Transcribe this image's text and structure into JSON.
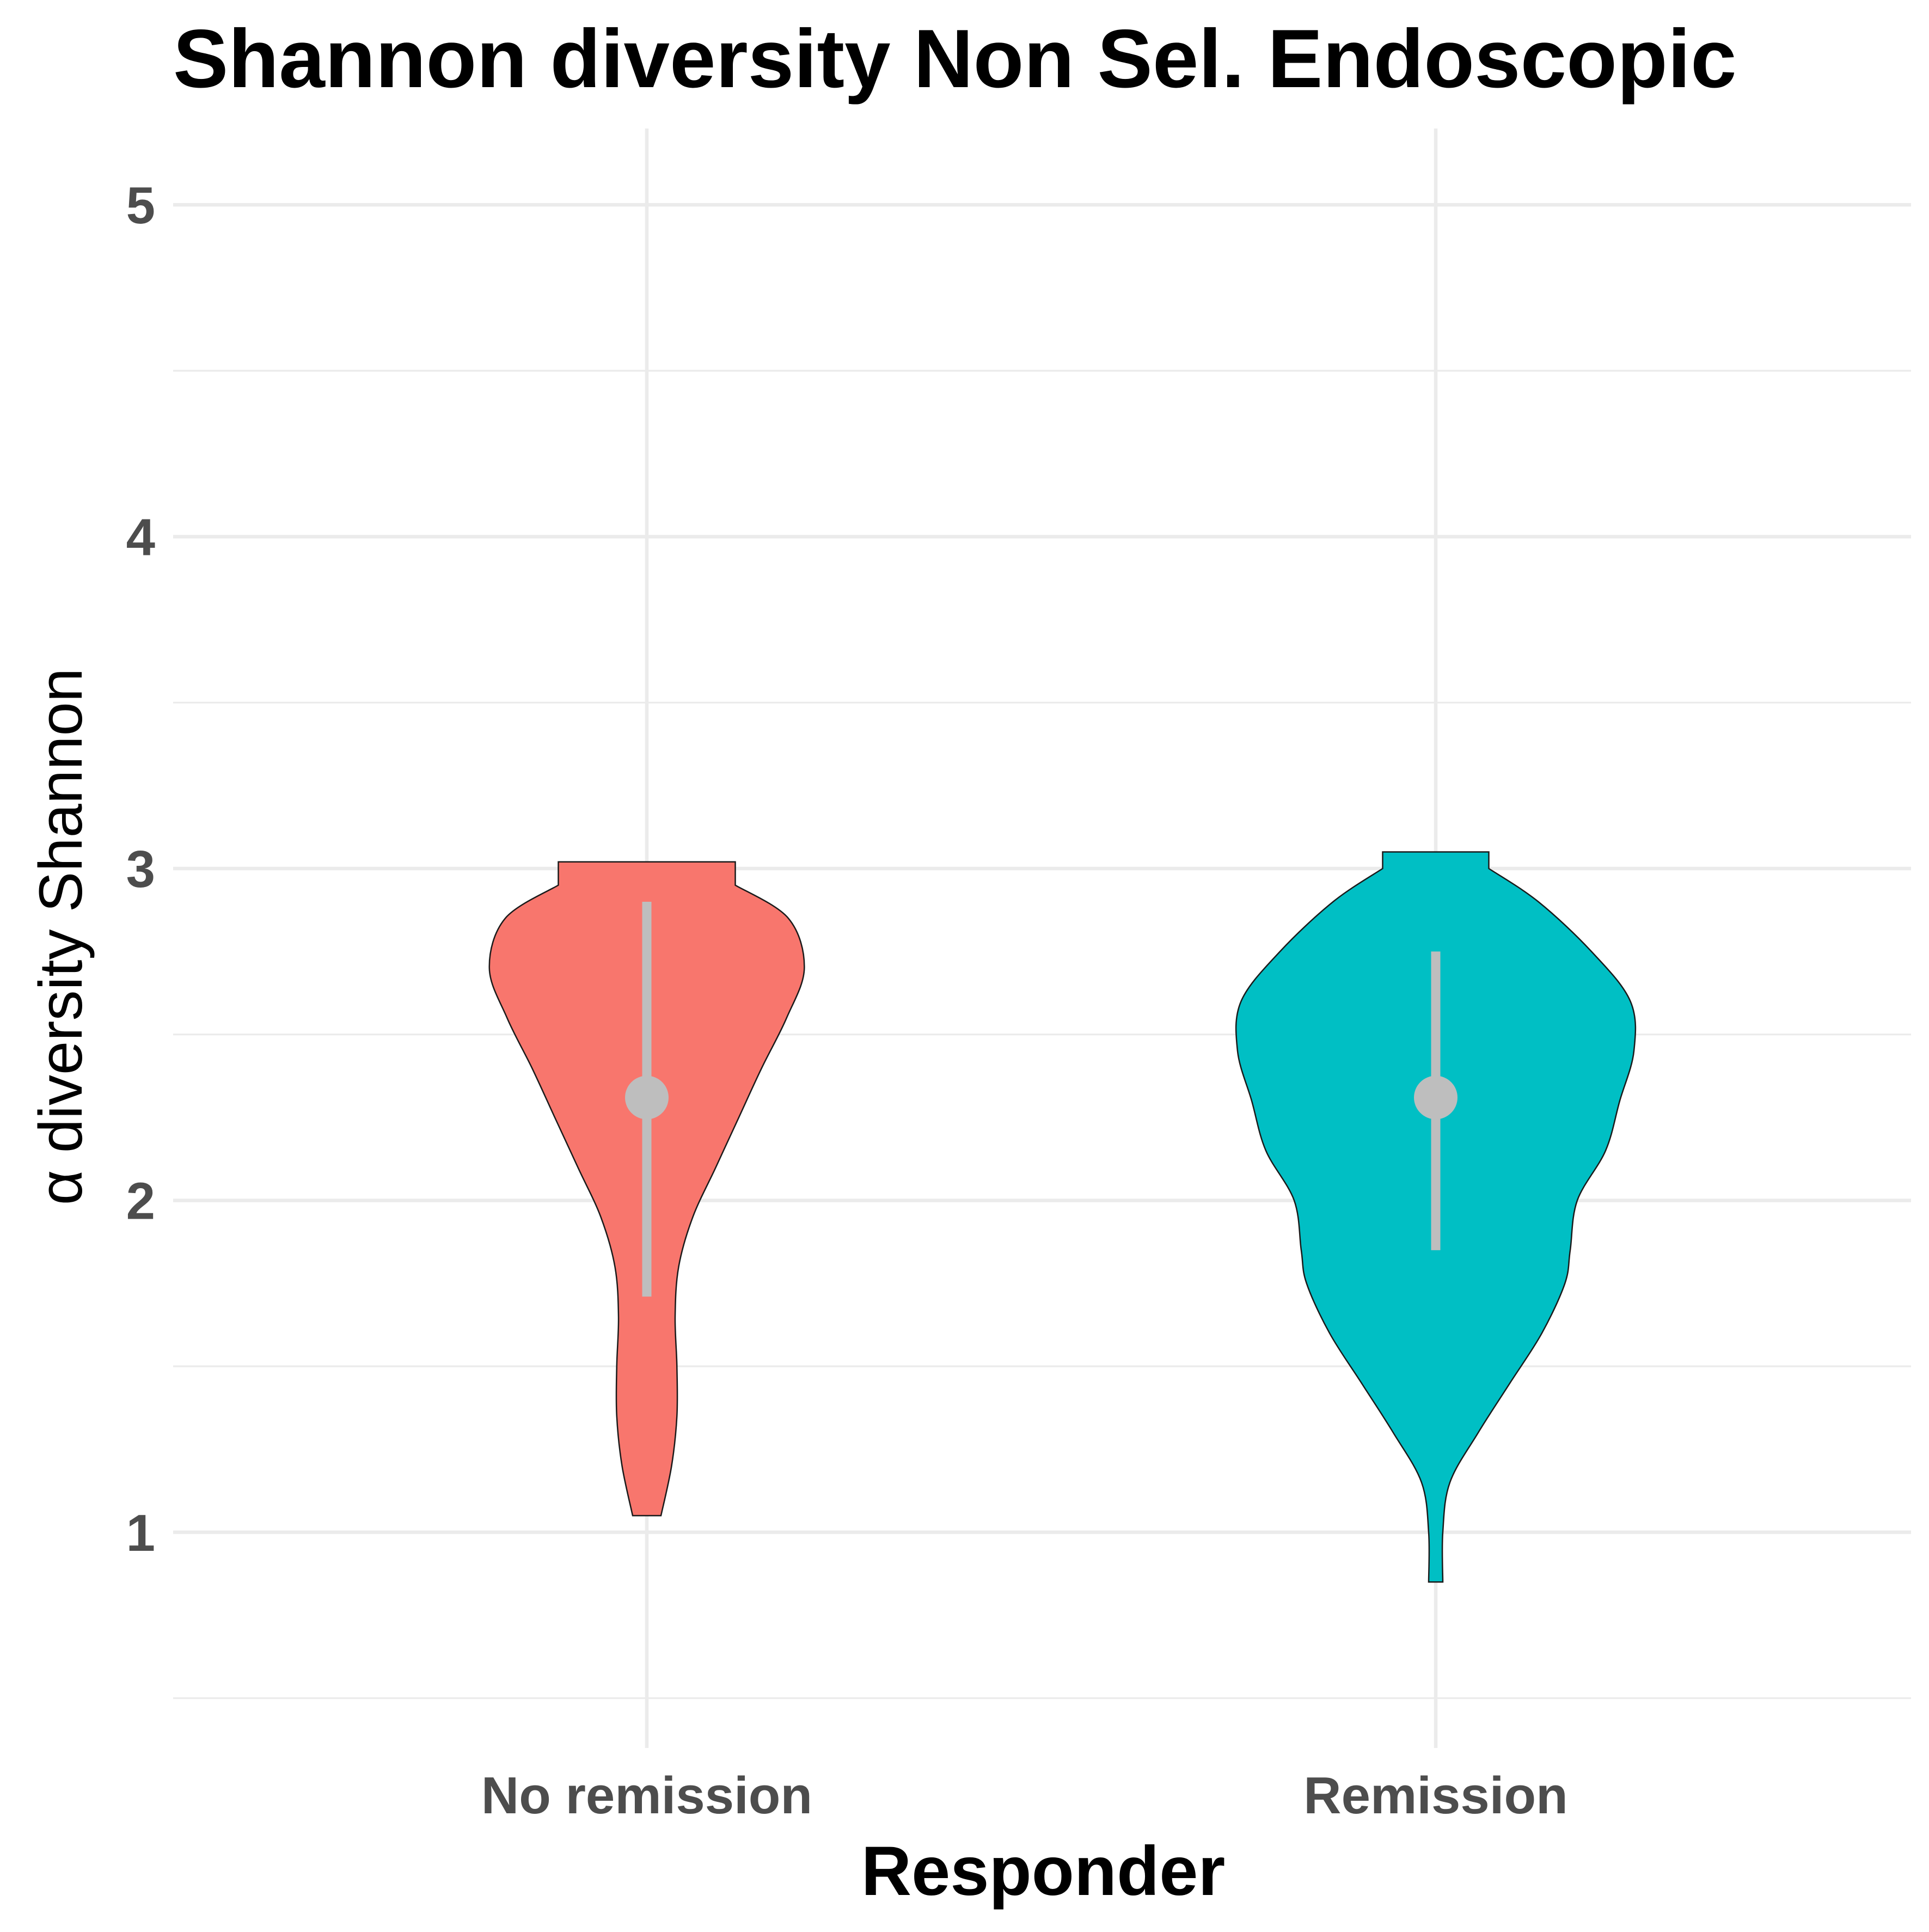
{
  "chart_data": {
    "type": "violin",
    "title": "Shannon diversity Non Sel. Endoscopic",
    "xlabel": "Responder",
    "ylabel": "α diversity Shannon",
    "categories": [
      "No remission",
      "Remission"
    ],
    "y_ticks": [
      1,
      2,
      3,
      4,
      5
    ],
    "ylim": [
      0.35,
      5.23
    ],
    "grid": true,
    "legend": "none",
    "series": [
      {
        "category": "No remission",
        "color": "#F8766D",
        "min": 1.05,
        "max": 3.02,
        "mean": 2.31,
        "lower": 1.71,
        "upper": 2.9,
        "density": [
          [
            1.05,
            0.08
          ],
          [
            1.2,
            0.14
          ],
          [
            1.35,
            0.17
          ],
          [
            1.5,
            0.17
          ],
          [
            1.65,
            0.16
          ],
          [
            1.8,
            0.18
          ],
          [
            1.95,
            0.26
          ],
          [
            2.1,
            0.39
          ],
          [
            2.25,
            0.52
          ],
          [
            2.4,
            0.65
          ],
          [
            2.55,
            0.79
          ],
          [
            2.7,
            0.89
          ],
          [
            2.85,
            0.8
          ],
          [
            2.95,
            0.5
          ],
          [
            3.02,
            0.5
          ]
        ]
      },
      {
        "category": "Remission",
        "color": "#00BFC4",
        "min": 0.85,
        "max": 3.05,
        "mean": 2.31,
        "lower": 1.85,
        "upper": 2.75,
        "density": [
          [
            0.85,
            0.04
          ],
          [
            1.0,
            0.04
          ],
          [
            1.15,
            0.08
          ],
          [
            1.3,
            0.24
          ],
          [
            1.45,
            0.42
          ],
          [
            1.6,
            0.6
          ],
          [
            1.75,
            0.73
          ],
          [
            1.85,
            0.76
          ],
          [
            2.0,
            0.8
          ],
          [
            2.15,
            0.96
          ],
          [
            2.3,
            1.04
          ],
          [
            2.45,
            1.12
          ],
          [
            2.6,
            1.1
          ],
          [
            2.75,
            0.88
          ],
          [
            2.9,
            0.58
          ],
          [
            3.0,
            0.3
          ],
          [
            3.05,
            0.3
          ]
        ]
      }
    ]
  }
}
